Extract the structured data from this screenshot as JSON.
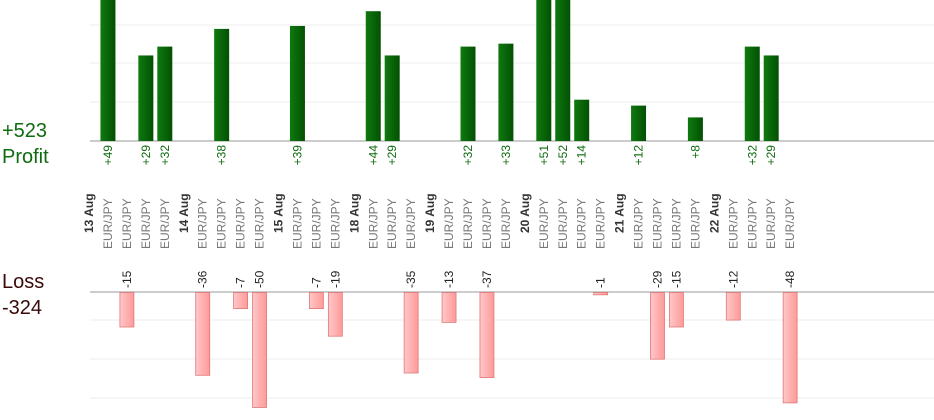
{
  "chart_data": {
    "type": "bar",
    "profit": {
      "total_text": "+523",
      "label": "Profit",
      "color": "#0e6b0e",
      "bar_color_light": "#0f7a0f",
      "bar_color_dark": "#035003"
    },
    "loss": {
      "total_text": "-324",
      "label": "Loss",
      "color": "#3a0a0a",
      "bar_color_light": "#ffc8c8",
      "bar_color_dark": "#ff9999",
      "bar_border": "#e07878"
    },
    "symbol": "EUR/JPY",
    "grid": true,
    "slots": [
      {
        "date": "13 Aug"
      },
      {
        "symbol": "EUR/JPY",
        "profit": 49
      },
      {
        "symbol": "EUR/JPY",
        "loss": -15
      },
      {
        "symbol": "EUR/JPY",
        "profit": 29
      },
      {
        "symbol": "EUR/JPY",
        "profit": 32
      },
      {
        "date": "14 Aug"
      },
      {
        "symbol": "EUR/JPY",
        "loss": -36
      },
      {
        "symbol": "EUR/JPY",
        "profit": 38
      },
      {
        "symbol": "EUR/JPY",
        "loss": -7
      },
      {
        "symbol": "EUR/JPY",
        "loss": -50
      },
      {
        "date": "15 Aug"
      },
      {
        "symbol": "EUR/JPY",
        "profit": 39
      },
      {
        "symbol": "EUR/JPY",
        "loss": -7
      },
      {
        "symbol": "EUR/JPY",
        "loss": -19
      },
      {
        "date": "18 Aug"
      },
      {
        "symbol": "EUR/JPY",
        "profit": 44
      },
      {
        "symbol": "EUR/JPY",
        "profit": 29
      },
      {
        "symbol": "EUR/JPY",
        "loss": -35
      },
      {
        "date": "19 Aug"
      },
      {
        "symbol": "EUR/JPY",
        "loss": -13
      },
      {
        "symbol": "EUR/JPY",
        "profit": 32
      },
      {
        "symbol": "EUR/JPY",
        "loss": -37
      },
      {
        "symbol": "EUR/JPY",
        "profit": 33
      },
      {
        "date": "20 Aug"
      },
      {
        "symbol": "EUR/JPY",
        "profit": 51
      },
      {
        "symbol": "EUR/JPY",
        "profit": 52
      },
      {
        "symbol": "EUR/JPY",
        "profit": 14
      },
      {
        "symbol": "EUR/JPY",
        "loss": -1
      },
      {
        "date": "21 Aug"
      },
      {
        "symbol": "EUR/JPY",
        "profit": 12
      },
      {
        "symbol": "EUR/JPY",
        "loss": -29
      },
      {
        "symbol": "EUR/JPY",
        "loss": -15
      },
      {
        "symbol": "EUR/JPY",
        "profit": 8
      },
      {
        "date": "22 Aug"
      },
      {
        "symbol": "EUR/JPY",
        "loss": -12
      },
      {
        "symbol": "EUR/JPY",
        "profit": 32
      },
      {
        "symbol": "EUR/JPY",
        "profit": 29
      },
      {
        "symbol": "EUR/JPY",
        "loss": -48
      }
    ]
  }
}
